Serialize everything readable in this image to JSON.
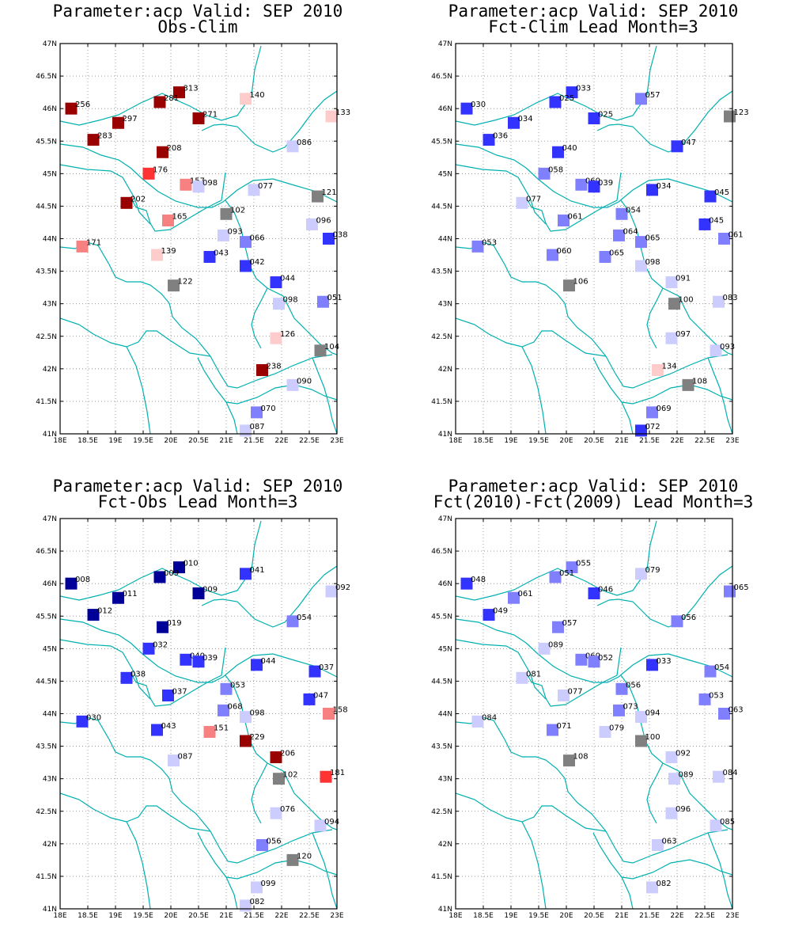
{
  "colors": {
    "dark_red": "#990000",
    "red": "#ff3333",
    "light_red": "#f78080",
    "pale_red": "#ffcccc",
    "gray": "#808080",
    "pale_blue": "#ccccff",
    "light_blue": "#8080ff",
    "blue": "#3333ff",
    "dark_blue": "#000099",
    "boundary": "#00b0b0",
    "grid": "#888888"
  },
  "axes": {
    "lon_range": [
      18,
      23
    ],
    "lat_range": [
      41,
      47
    ],
    "x_ticks": [
      "18E",
      "18.5E",
      "19E",
      "19.5E",
      "20E",
      "20.5E",
      "21E",
      "21.5E",
      "22E",
      "22.5E",
      "23E"
    ],
    "y_ticks": [
      "41N",
      "41.5N",
      "42N",
      "42.5N",
      "43N",
      "43.5N",
      "44N",
      "44.5N",
      "45N",
      "45.5N",
      "46N",
      "46.5N",
      "47N"
    ]
  },
  "panels": [
    {
      "title_line1": "Parameter:acp Valid: SEP 2010",
      "title_line2": "Obs-Clim",
      "stations": [
        {
          "lon": 18.2,
          "lat": 46.0,
          "label": "256",
          "color": "dark_red"
        },
        {
          "lon": 20.15,
          "lat": 46.25,
          "label": "313",
          "color": "dark_red"
        },
        {
          "lon": 19.8,
          "lat": 46.1,
          "label": "281",
          "color": "dark_red"
        },
        {
          "lon": 19.05,
          "lat": 45.78,
          "label": "297",
          "color": "dark_red"
        },
        {
          "lon": 20.5,
          "lat": 45.85,
          "label": "271",
          "color": "dark_red"
        },
        {
          "lon": 21.35,
          "lat": 46.15,
          "label": "140",
          "color": "pale_red"
        },
        {
          "lon": 22.9,
          "lat": 45.88,
          "label": "133",
          "color": "pale_red"
        },
        {
          "lon": 18.6,
          "lat": 45.52,
          "label": "283",
          "color": "dark_red"
        },
        {
          "lon": 19.85,
          "lat": 45.33,
          "label": "208",
          "color": "dark_red"
        },
        {
          "lon": 22.2,
          "lat": 45.42,
          "label": "086",
          "color": "pale_blue"
        },
        {
          "lon": 19.6,
          "lat": 45.0,
          "label": "176",
          "color": "red"
        },
        {
          "lon": 20.27,
          "lat": 44.83,
          "label": "157",
          "color": "light_red"
        },
        {
          "lon": 20.5,
          "lat": 44.8,
          "label": "098",
          "color": "pale_blue"
        },
        {
          "lon": 21.5,
          "lat": 44.75,
          "label": "077",
          "color": "pale_blue"
        },
        {
          "lon": 22.65,
          "lat": 44.65,
          "label": "121",
          "color": "gray"
        },
        {
          "lon": 19.2,
          "lat": 44.55,
          "label": "202",
          "color": "dark_red"
        },
        {
          "lon": 21.0,
          "lat": 44.38,
          "label": "102",
          "color": "gray"
        },
        {
          "lon": 19.95,
          "lat": 44.28,
          "label": "165",
          "color": "light_red"
        },
        {
          "lon": 22.55,
          "lat": 44.22,
          "label": "096",
          "color": "pale_blue"
        },
        {
          "lon": 20.95,
          "lat": 44.05,
          "label": "093",
          "color": "pale_blue"
        },
        {
          "lon": 21.35,
          "lat": 43.95,
          "label": "066",
          "color": "light_blue"
        },
        {
          "lon": 22.85,
          "lat": 44.0,
          "label": "038",
          "color": "blue"
        },
        {
          "lon": 18.4,
          "lat": 43.88,
          "label": "171",
          "color": "light_red"
        },
        {
          "lon": 19.75,
          "lat": 43.75,
          "label": "139",
          "color": "pale_red"
        },
        {
          "lon": 20.7,
          "lat": 43.72,
          "label": "043",
          "color": "blue"
        },
        {
          "lon": 21.35,
          "lat": 43.58,
          "label": "042",
          "color": "blue"
        },
        {
          "lon": 21.9,
          "lat": 43.33,
          "label": "044",
          "color": "blue"
        },
        {
          "lon": 20.05,
          "lat": 43.28,
          "label": "122",
          "color": "gray"
        },
        {
          "lon": 21.95,
          "lat": 43.0,
          "label": "098",
          "color": "pale_blue"
        },
        {
          "lon": 22.75,
          "lat": 43.03,
          "label": "051",
          "color": "light_blue"
        },
        {
          "lon": 21.9,
          "lat": 42.47,
          "label": "126",
          "color": "pale_red"
        },
        {
          "lon": 22.7,
          "lat": 42.28,
          "label": "104",
          "color": "gray"
        },
        {
          "lon": 21.65,
          "lat": 41.98,
          "label": "238",
          "color": "dark_red"
        },
        {
          "lon": 22.2,
          "lat": 41.75,
          "label": "090",
          "color": "pale_blue"
        },
        {
          "lon": 21.55,
          "lat": 41.33,
          "label": "070",
          "color": "light_blue"
        },
        {
          "lon": 21.35,
          "lat": 41.05,
          "label": "087",
          "color": "pale_blue"
        }
      ]
    },
    {
      "title_line1": "Parameter:acp Valid: SEP 2010",
      "title_line2": "Fct-Clim Lead Month=3",
      "stations": [
        {
          "lon": 18.2,
          "lat": 46.0,
          "label": "030",
          "color": "blue"
        },
        {
          "lon": 20.1,
          "lat": 46.25,
          "label": "033",
          "color": "blue"
        },
        {
          "lon": 19.8,
          "lat": 46.1,
          "label": "025",
          "color": "blue"
        },
        {
          "lon": 19.05,
          "lat": 45.78,
          "label": "034",
          "color": "blue"
        },
        {
          "lon": 20.5,
          "lat": 45.85,
          "label": "025",
          "color": "blue"
        },
        {
          "lon": 21.35,
          "lat": 46.15,
          "label": "057",
          "color": "light_blue"
        },
        {
          "lon": 22.95,
          "lat": 45.88,
          "label": "123",
          "color": "gray"
        },
        {
          "lon": 18.6,
          "lat": 45.52,
          "label": "036",
          "color": "blue"
        },
        {
          "lon": 19.85,
          "lat": 45.33,
          "label": "040",
          "color": "blue"
        },
        {
          "lon": 22.0,
          "lat": 45.42,
          "label": "047",
          "color": "blue"
        },
        {
          "lon": 19.6,
          "lat": 45.0,
          "label": "058",
          "color": "light_blue"
        },
        {
          "lon": 20.27,
          "lat": 44.83,
          "label": "060",
          "color": "light_blue"
        },
        {
          "lon": 20.5,
          "lat": 44.8,
          "label": "039",
          "color": "blue"
        },
        {
          "lon": 21.55,
          "lat": 44.75,
          "label": "034",
          "color": "blue"
        },
        {
          "lon": 22.6,
          "lat": 44.65,
          "label": "045",
          "color": "blue"
        },
        {
          "lon": 19.2,
          "lat": 44.55,
          "label": "077",
          "color": "pale_blue"
        },
        {
          "lon": 21.0,
          "lat": 44.38,
          "label": "054",
          "color": "light_blue"
        },
        {
          "lon": 19.95,
          "lat": 44.28,
          "label": "061",
          "color": "light_blue"
        },
        {
          "lon": 22.5,
          "lat": 44.22,
          "label": "045",
          "color": "blue"
        },
        {
          "lon": 20.95,
          "lat": 44.05,
          "label": "064",
          "color": "light_blue"
        },
        {
          "lon": 21.35,
          "lat": 43.95,
          "label": "065",
          "color": "light_blue"
        },
        {
          "lon": 22.85,
          "lat": 44.0,
          "label": "061",
          "color": "light_blue"
        },
        {
          "lon": 18.4,
          "lat": 43.88,
          "label": "053",
          "color": "light_blue"
        },
        {
          "lon": 19.75,
          "lat": 43.75,
          "label": "060",
          "color": "light_blue"
        },
        {
          "lon": 20.7,
          "lat": 43.72,
          "label": "065",
          "color": "light_blue"
        },
        {
          "lon": 21.35,
          "lat": 43.58,
          "label": "098",
          "color": "pale_blue"
        },
        {
          "lon": 21.9,
          "lat": 43.33,
          "label": "091",
          "color": "pale_blue"
        },
        {
          "lon": 20.05,
          "lat": 43.28,
          "label": "106",
          "color": "gray"
        },
        {
          "lon": 21.95,
          "lat": 43.0,
          "label": "100",
          "color": "gray"
        },
        {
          "lon": 22.75,
          "lat": 43.03,
          "label": "083",
          "color": "pale_blue"
        },
        {
          "lon": 21.9,
          "lat": 42.47,
          "label": "097",
          "color": "pale_blue"
        },
        {
          "lon": 22.7,
          "lat": 42.28,
          "label": "093",
          "color": "pale_blue"
        },
        {
          "lon": 21.65,
          "lat": 41.98,
          "label": "134",
          "color": "pale_red"
        },
        {
          "lon": 22.2,
          "lat": 41.75,
          "label": "108",
          "color": "gray"
        },
        {
          "lon": 21.55,
          "lat": 41.33,
          "label": "069",
          "color": "light_blue"
        },
        {
          "lon": 21.35,
          "lat": 41.05,
          "label": "072",
          "color": "blue"
        }
      ]
    },
    {
      "title_line1": "Parameter:acp Valid: SEP 2010",
      "title_line2": "Fct-Obs Lead Month=3",
      "stations": [
        {
          "lon": 18.2,
          "lat": 46.0,
          "label": "008",
          "color": "dark_blue"
        },
        {
          "lon": 20.15,
          "lat": 46.25,
          "label": "010",
          "color": "dark_blue"
        },
        {
          "lon": 19.8,
          "lat": 46.1,
          "label": "009",
          "color": "dark_blue"
        },
        {
          "lon": 19.05,
          "lat": 45.78,
          "label": "011",
          "color": "dark_blue"
        },
        {
          "lon": 20.5,
          "lat": 45.85,
          "label": "009",
          "color": "dark_blue"
        },
        {
          "lon": 21.35,
          "lat": 46.15,
          "label": "041",
          "color": "blue"
        },
        {
          "lon": 22.9,
          "lat": 45.88,
          "label": "092",
          "color": "pale_blue"
        },
        {
          "lon": 18.6,
          "lat": 45.52,
          "label": "012",
          "color": "dark_blue"
        },
        {
          "lon": 19.85,
          "lat": 45.33,
          "label": "019",
          "color": "dark_blue"
        },
        {
          "lon": 22.2,
          "lat": 45.42,
          "label": "054",
          "color": "light_blue"
        },
        {
          "lon": 19.6,
          "lat": 45.0,
          "label": "032",
          "color": "blue"
        },
        {
          "lon": 20.27,
          "lat": 44.83,
          "label": "040",
          "color": "blue"
        },
        {
          "lon": 20.5,
          "lat": 44.8,
          "label": "039",
          "color": "blue"
        },
        {
          "lon": 21.55,
          "lat": 44.75,
          "label": "044",
          "color": "blue"
        },
        {
          "lon": 22.6,
          "lat": 44.65,
          "label": "037",
          "color": "blue"
        },
        {
          "lon": 19.2,
          "lat": 44.55,
          "label": "038",
          "color": "blue"
        },
        {
          "lon": 21.0,
          "lat": 44.38,
          "label": "053",
          "color": "light_blue"
        },
        {
          "lon": 19.95,
          "lat": 44.28,
          "label": "037",
          "color": "blue"
        },
        {
          "lon": 22.5,
          "lat": 44.22,
          "label": "047",
          "color": "blue"
        },
        {
          "lon": 20.95,
          "lat": 44.05,
          "label": "068",
          "color": "light_blue"
        },
        {
          "lon": 21.35,
          "lat": 43.95,
          "label": "098",
          "color": "pale_blue"
        },
        {
          "lon": 22.85,
          "lat": 44.0,
          "label": "158",
          "color": "light_red"
        },
        {
          "lon": 18.4,
          "lat": 43.88,
          "label": "030",
          "color": "blue"
        },
        {
          "lon": 19.75,
          "lat": 43.75,
          "label": "043",
          "color": "blue"
        },
        {
          "lon": 20.7,
          "lat": 43.72,
          "label": "151",
          "color": "light_red"
        },
        {
          "lon": 21.35,
          "lat": 43.58,
          "label": "229",
          "color": "dark_red"
        },
        {
          "lon": 21.9,
          "lat": 43.33,
          "label": "206",
          "color": "dark_red"
        },
        {
          "lon": 20.05,
          "lat": 43.28,
          "label": "087",
          "color": "pale_blue"
        },
        {
          "lon": 21.95,
          "lat": 43.0,
          "label": "102",
          "color": "gray"
        },
        {
          "lon": 22.8,
          "lat": 43.03,
          "label": "181",
          "color": "red"
        },
        {
          "lon": 21.9,
          "lat": 42.47,
          "label": "076",
          "color": "pale_blue"
        },
        {
          "lon": 22.7,
          "lat": 42.28,
          "label": "094",
          "color": "pale_blue"
        },
        {
          "lon": 21.65,
          "lat": 41.98,
          "label": "056",
          "color": "light_blue"
        },
        {
          "lon": 22.2,
          "lat": 41.75,
          "label": "120",
          "color": "gray"
        },
        {
          "lon": 21.55,
          "lat": 41.33,
          "label": "099",
          "color": "pale_blue"
        },
        {
          "lon": 21.35,
          "lat": 41.05,
          "label": "082",
          "color": "pale_blue"
        }
      ]
    },
    {
      "title_line1": "Parameter:acp Valid: SEP 2010",
      "title_line2": "Fct(2010)-Fct(2009) Lead Month=3",
      "stations": [
        {
          "lon": 18.2,
          "lat": 46.0,
          "label": "048",
          "color": "blue"
        },
        {
          "lon": 20.1,
          "lat": 46.25,
          "label": "055",
          "color": "light_blue"
        },
        {
          "lon": 19.8,
          "lat": 46.1,
          "label": "051",
          "color": "light_blue"
        },
        {
          "lon": 19.05,
          "lat": 45.78,
          "label": "061",
          "color": "light_blue"
        },
        {
          "lon": 20.5,
          "lat": 45.85,
          "label": "046",
          "color": "blue"
        },
        {
          "lon": 21.35,
          "lat": 46.15,
          "label": "079",
          "color": "pale_blue"
        },
        {
          "lon": 22.95,
          "lat": 45.88,
          "label": "065",
          "color": "light_blue"
        },
        {
          "lon": 18.6,
          "lat": 45.52,
          "label": "049",
          "color": "blue"
        },
        {
          "lon": 19.85,
          "lat": 45.33,
          "label": "057",
          "color": "light_blue"
        },
        {
          "lon": 22.0,
          "lat": 45.42,
          "label": "056",
          "color": "light_blue"
        },
        {
          "lon": 19.6,
          "lat": 45.0,
          "label": "089",
          "color": "pale_blue"
        },
        {
          "lon": 20.27,
          "lat": 44.83,
          "label": "060",
          "color": "light_blue"
        },
        {
          "lon": 20.5,
          "lat": 44.8,
          "label": "052",
          "color": "light_blue"
        },
        {
          "lon": 21.55,
          "lat": 44.75,
          "label": "033",
          "color": "blue"
        },
        {
          "lon": 22.6,
          "lat": 44.65,
          "label": "054",
          "color": "light_blue"
        },
        {
          "lon": 19.2,
          "lat": 44.55,
          "label": "081",
          "color": "pale_blue"
        },
        {
          "lon": 21.0,
          "lat": 44.38,
          "label": "056",
          "color": "light_blue"
        },
        {
          "lon": 19.95,
          "lat": 44.28,
          "label": "077",
          "color": "pale_blue"
        },
        {
          "lon": 22.5,
          "lat": 44.22,
          "label": "053",
          "color": "light_blue"
        },
        {
          "lon": 20.95,
          "lat": 44.05,
          "label": "073",
          "color": "light_blue"
        },
        {
          "lon": 21.35,
          "lat": 43.95,
          "label": "094",
          "color": "pale_blue"
        },
        {
          "lon": 22.85,
          "lat": 44.0,
          "label": "063",
          "color": "light_blue"
        },
        {
          "lon": 18.4,
          "lat": 43.88,
          "label": "084",
          "color": "pale_blue"
        },
        {
          "lon": 19.75,
          "lat": 43.75,
          "label": "071",
          "color": "light_blue"
        },
        {
          "lon": 20.7,
          "lat": 43.72,
          "label": "079",
          "color": "pale_blue"
        },
        {
          "lon": 21.35,
          "lat": 43.58,
          "label": "100",
          "color": "gray"
        },
        {
          "lon": 21.9,
          "lat": 43.33,
          "label": "092",
          "color": "pale_blue"
        },
        {
          "lon": 20.05,
          "lat": 43.28,
          "label": "108",
          "color": "gray"
        },
        {
          "lon": 21.95,
          "lat": 43.0,
          "label": "089",
          "color": "pale_blue"
        },
        {
          "lon": 22.75,
          "lat": 43.03,
          "label": "084",
          "color": "pale_blue"
        },
        {
          "lon": 21.9,
          "lat": 42.47,
          "label": "096",
          "color": "pale_blue"
        },
        {
          "lon": 22.7,
          "lat": 42.28,
          "label": "085",
          "color": "pale_blue"
        },
        {
          "lon": 21.65,
          "lat": 41.98,
          "label": "063",
          "color": "pale_blue"
        },
        {
          "lon": 21.55,
          "lat": 41.33,
          "label": "082",
          "color": "pale_blue"
        }
      ]
    }
  ]
}
